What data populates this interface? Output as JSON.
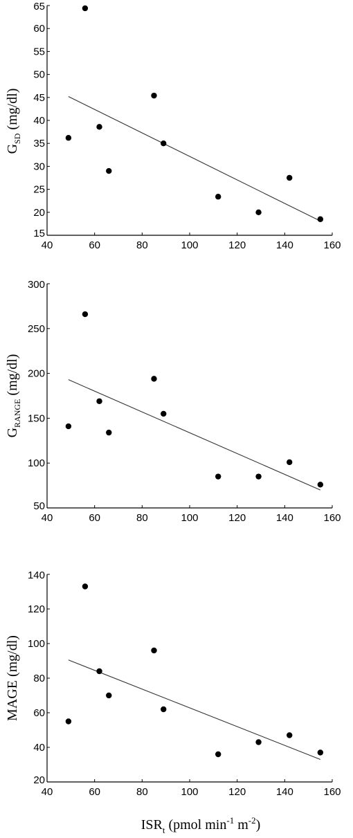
{
  "chart_data": [
    {
      "type": "scatter",
      "ylabel": {
        "main": "G",
        "sub": "SD",
        "rest": " (mg/dl)"
      },
      "xlim": [
        40,
        160
      ],
      "ylim": [
        15,
        65
      ],
      "xticks": [
        "40",
        "60",
        "80",
        "100",
        "120",
        "140",
        "160"
      ],
      "yticks": [
        "15",
        "20",
        "25",
        "30",
        "35",
        "40",
        "45",
        "50",
        "55",
        "60",
        "65"
      ],
      "x": [
        49,
        56,
        62,
        66,
        85,
        89,
        112,
        129,
        142,
        155
      ],
      "y": [
        36.2,
        64.4,
        38.6,
        29.0,
        45.4,
        35.0,
        23.4,
        20.0,
        27.5,
        18.5
      ],
      "trendline": {
        "x": [
          49,
          155
        ],
        "y": [
          45.2,
          18.1
        ]
      }
    },
    {
      "type": "scatter",
      "ylabel": {
        "main": "G",
        "sub": "RANGE",
        "rest": " (mg/dl)"
      },
      "xlim": [
        40,
        160
      ],
      "ylim": [
        50,
        300
      ],
      "xticks": [
        "40",
        "60",
        "80",
        "100",
        "120",
        "140",
        "160"
      ],
      "yticks": [
        "50",
        "100",
        "150",
        "200",
        "250",
        "300"
      ],
      "x": [
        49,
        56,
        62,
        66,
        85,
        89,
        112,
        129,
        142,
        155
      ],
      "y": [
        141,
        266,
        169,
        134,
        194,
        155,
        85,
        85,
        101,
        76
      ],
      "trendline": {
        "x": [
          49,
          155
        ],
        "y": [
          193,
          70
        ]
      }
    },
    {
      "type": "scatter",
      "ylabel": {
        "main": "MAGE",
        "sub": "",
        "rest": " (mg/dl)"
      },
      "xlim": [
        40,
        160
      ],
      "ylim": [
        20,
        140
      ],
      "xticks": [
        "40",
        "60",
        "80",
        "100",
        "120",
        "140",
        "160"
      ],
      "yticks": [
        "20",
        "40",
        "60",
        "80",
        "100",
        "120",
        "140"
      ],
      "x": [
        49,
        56,
        62,
        66,
        85,
        89,
        112,
        129,
        142,
        155
      ],
      "y": [
        55,
        133,
        84,
        70,
        96,
        62,
        36,
        43,
        47,
        37
      ],
      "trendline": {
        "x": [
          49,
          155
        ],
        "y": [
          90.5,
          33.0
        ]
      }
    }
  ],
  "xlabel": {
    "main": "ISR",
    "sub": "t",
    "rest1": " (pmol min",
    "sup1": "-1",
    "rest2": " m",
    "sup2": "-2",
    "rest3": ")"
  }
}
